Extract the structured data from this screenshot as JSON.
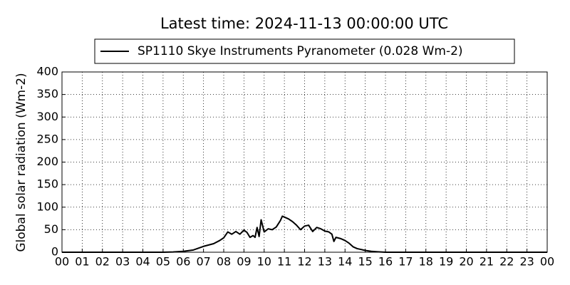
{
  "chart_data": {
    "type": "line",
    "title": "Latest time: 2024-11-13 00:00:00 UTC",
    "y_label": "Global solar radiation (Wm-2)",
    "x": [
      0,
      1,
      2,
      3,
      4,
      5,
      5.5,
      6,
      6.5,
      7,
      7.5,
      7.8,
      8,
      8.2,
      8.4,
      8.6,
      8.8,
      9,
      9.15,
      9.3,
      9.45,
      9.55,
      9.65,
      9.75,
      9.85,
      10,
      10.2,
      10.4,
      10.6,
      10.8,
      10.9,
      11,
      11.2,
      11.4,
      11.6,
      11.8,
      12,
      12.2,
      12.4,
      12.6,
      12.8,
      13,
      13.2,
      13.35,
      13.45,
      13.55,
      13.8,
      14,
      14.2,
      14.4,
      14.6,
      15,
      15.3,
      15.6,
      16,
      17,
      18,
      19,
      20,
      21,
      22,
      23,
      24
    ],
    "series": [
      {
        "name": "SP1110 Skye Instruments Pyranometer (0.028 Wm-2)",
        "color": "#000000",
        "values": [
          0,
          0,
          0,
          0,
          0,
          0,
          0.5,
          2,
          5,
          13,
          19,
          26,
          32,
          45,
          40,
          46,
          40,
          49,
          44,
          33,
          37,
          33,
          55,
          35,
          72,
          45,
          52,
          50,
          56,
          70,
          80,
          78,
          74,
          68,
          60,
          50,
          58,
          60,
          46,
          55,
          52,
          47,
          45,
          40,
          24,
          33,
          30,
          26,
          20,
          12,
          8,
          4,
          2,
          1,
          0,
          0,
          0,
          0,
          0,
          0,
          0,
          0,
          0
        ]
      }
    ],
    "xlim": [
      0,
      24
    ],
    "xticks": [
      {
        "value": 0,
        "label": "00"
      },
      {
        "value": 1,
        "label": "01"
      },
      {
        "value": 2,
        "label": "02"
      },
      {
        "value": 3,
        "label": "03"
      },
      {
        "value": 4,
        "label": "04"
      },
      {
        "value": 5,
        "label": "05"
      },
      {
        "value": 6,
        "label": "06"
      },
      {
        "value": 7,
        "label": "07"
      },
      {
        "value": 8,
        "label": "08"
      },
      {
        "value": 9,
        "label": "09"
      },
      {
        "value": 10,
        "label": "10"
      },
      {
        "value": 11,
        "label": "11"
      },
      {
        "value": 12,
        "label": "12"
      },
      {
        "value": 13,
        "label": "13"
      },
      {
        "value": 14,
        "label": "14"
      },
      {
        "value": 15,
        "label": "15"
      },
      {
        "value": 16,
        "label": "16"
      },
      {
        "value": 17,
        "label": "17"
      },
      {
        "value": 18,
        "label": "18"
      },
      {
        "value": 19,
        "label": "19"
      },
      {
        "value": 20,
        "label": "20"
      },
      {
        "value": 21,
        "label": "21"
      },
      {
        "value": 22,
        "label": "22"
      },
      {
        "value": 23,
        "label": "23"
      },
      {
        "value": 24,
        "label": "00"
      }
    ],
    "ylim": [
      0,
      400
    ],
    "yticks": [
      0,
      50,
      100,
      150,
      200,
      250,
      300,
      350,
      400
    ],
    "grid": true,
    "legend": "upper center"
  }
}
